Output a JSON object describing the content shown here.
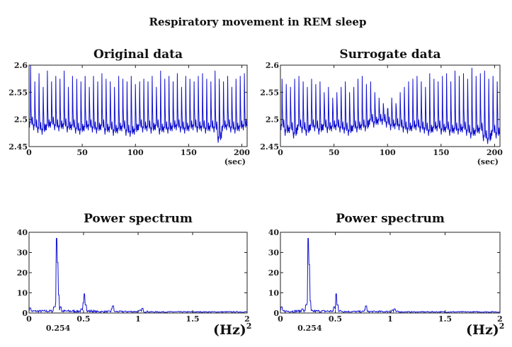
{
  "title": "Respiratory movement in REM sleep",
  "chart_data": [
    {
      "type": "line",
      "title": "Original data",
      "xlabel": "(sec)",
      "xlim": [
        0,
        205
      ],
      "ylim": [
        2.45,
        2.6
      ],
      "xticks": [
        "0",
        "50",
        "100",
        "150",
        "200"
      ],
      "yticks": [
        "2.45",
        "2.5",
        "2.55",
        "2.6"
      ],
      "period_sec": 3.94,
      "cycle_peaks": [
        2.6,
        2.57,
        2.585,
        2.56,
        2.59,
        2.57,
        2.58,
        2.575,
        2.59,
        2.56,
        2.58,
        2.575,
        2.57,
        2.58,
        2.56,
        2.58,
        2.57,
        2.585,
        2.575,
        2.57,
        2.56,
        2.58,
        2.575,
        2.57,
        2.58,
        2.565,
        2.57,
        2.575,
        2.57,
        2.58,
        2.56,
        2.59,
        2.575,
        2.58,
        2.57,
        2.585,
        2.56,
        2.58,
        2.575,
        2.57,
        2.58,
        2.585,
        2.575,
        2.57,
        2.59,
        2.575,
        2.57,
        2.58,
        2.56,
        2.575,
        2.58,
        2.585
      ],
      "cycle_troughs": [
        2.485,
        2.48,
        2.475,
        2.472,
        2.48,
        2.485,
        2.48,
        2.478,
        2.482,
        2.476,
        2.48,
        2.474,
        2.472,
        2.478,
        2.48,
        2.476,
        2.474,
        2.48,
        2.472,
        2.476,
        2.47,
        2.474,
        2.478,
        2.47,
        2.468,
        2.472,
        2.48,
        2.476,
        2.478,
        2.474,
        2.48,
        2.472,
        2.476,
        2.474,
        2.478,
        2.48,
        2.476,
        2.474,
        2.478,
        2.48,
        2.476,
        2.478,
        2.474,
        2.478,
        2.476,
        2.457,
        2.478,
        2.48,
        2.476,
        2.474,
        2.478,
        2.48
      ]
    },
    {
      "type": "line",
      "title": "Surrogate data",
      "xlabel": "(sec)",
      "xlim": [
        0,
        205
      ],
      "ylim": [
        2.45,
        2.6
      ],
      "xticks": [
        "0",
        "50",
        "100",
        "150",
        "200"
      ],
      "yticks": [
        "2.45",
        "2.5",
        "2.55",
        "2.6"
      ],
      "period_sec": 3.94,
      "cycle_peaks": [
        2.575,
        2.565,
        2.56,
        2.575,
        2.58,
        2.57,
        2.56,
        2.575,
        2.565,
        2.57,
        2.55,
        2.56,
        2.54,
        2.55,
        2.56,
        2.57,
        2.55,
        2.56,
        2.575,
        2.58,
        2.565,
        2.57,
        2.55,
        2.54,
        2.53,
        2.52,
        2.54,
        2.53,
        2.55,
        2.56,
        2.57,
        2.575,
        2.58,
        2.57,
        2.56,
        2.585,
        2.575,
        2.57,
        2.58,
        2.585,
        2.57,
        2.59,
        2.58,
        2.585,
        2.575,
        2.595,
        2.58,
        2.585,
        2.59,
        2.575,
        2.58,
        2.57
      ],
      "cycle_troughs": [
        2.48,
        2.47,
        2.475,
        2.465,
        2.48,
        2.475,
        2.47,
        2.48,
        2.478,
        2.472,
        2.48,
        2.475,
        2.478,
        2.48,
        2.476,
        2.474,
        2.47,
        2.478,
        2.476,
        2.48,
        2.478,
        2.49,
        2.485,
        2.49,
        2.49,
        2.485,
        2.48,
        2.482,
        2.48,
        2.476,
        2.474,
        2.478,
        2.48,
        2.476,
        2.474,
        2.47,
        2.476,
        2.478,
        2.472,
        2.476,
        2.47,
        2.474,
        2.472,
        2.476,
        2.47,
        2.465,
        2.47,
        2.474,
        2.46,
        2.455,
        2.47,
        2.465
      ]
    },
    {
      "type": "line",
      "title": "Power spectrum",
      "xlabel": "(Hz)",
      "xlabel_sup": "2",
      "annotation": "0.254",
      "xlim": [
        0,
        2
      ],
      "ylim": [
        0,
        40
      ],
      "xticks": [
        "0",
        "0.5",
        "1",
        "1.5",
        "2"
      ],
      "yticks": [
        "0",
        "10",
        "20",
        "30",
        "40"
      ],
      "peaks": [
        [
          0.01,
          2.5
        ],
        [
          0.23,
          3
        ],
        [
          0.254,
          37
        ],
        [
          0.262,
          25
        ],
        [
          0.27,
          9
        ],
        [
          0.29,
          3
        ],
        [
          0.48,
          2
        ],
        [
          0.5,
          5
        ],
        [
          0.508,
          9.5
        ],
        [
          0.52,
          4
        ],
        [
          0.76,
          2
        ],
        [
          0.77,
          3.5
        ],
        [
          1.02,
          1.5
        ],
        [
          1.04,
          2.3
        ]
      ]
    },
    {
      "type": "line",
      "title": "Power spectrum",
      "xlabel": "(Hz)",
      "xlabel_sup": "2",
      "annotation": "0.254",
      "xlim": [
        0,
        2
      ],
      "ylim": [
        0,
        40
      ],
      "xticks": [
        "0",
        "0.5",
        "1",
        "1.5",
        "2"
      ],
      "yticks": [
        "0",
        "10",
        "20",
        "30",
        "40"
      ],
      "peaks": [
        [
          0.01,
          3
        ],
        [
          0.2,
          2
        ],
        [
          0.235,
          4
        ],
        [
          0.254,
          37
        ],
        [
          0.262,
          24
        ],
        [
          0.27,
          6
        ],
        [
          0.49,
          3
        ],
        [
          0.508,
          9.5
        ],
        [
          0.52,
          4
        ],
        [
          0.77,
          1.5
        ],
        [
          0.78,
          3.5
        ],
        [
          1.02,
          1.5
        ],
        [
          1.04,
          2
        ]
      ]
    }
  ]
}
